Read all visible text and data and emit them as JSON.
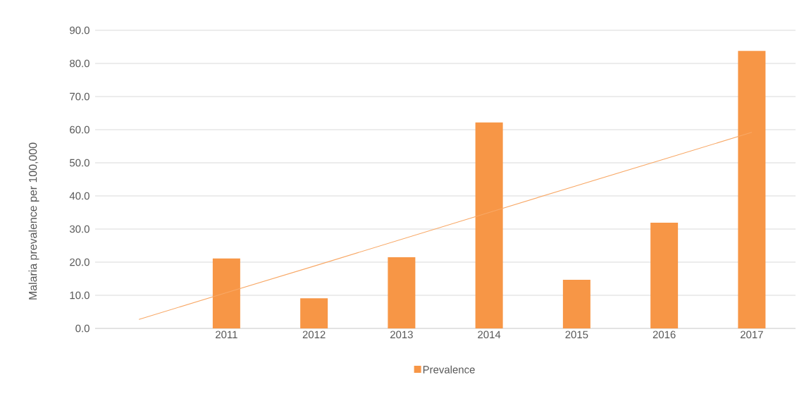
{
  "chart_data": {
    "type": "bar",
    "ylabel": "Malaria prevalence per 100,000",
    "categories": [
      null,
      "2011",
      "2012",
      "2013",
      "2014",
      "2015",
      "2016",
      "2017"
    ],
    "series": [
      {
        "name": "Prevalence",
        "color": "#f79646",
        "values": [
          null,
          21.1,
          9.1,
          21.5,
          62.2,
          14.7,
          31.9,
          83.8
        ]
      },
      {
        "type": "line",
        "color": "#f8a866",
        "values": [
          2.7,
          10.8,
          18.8,
          26.9,
          35.0,
          43.1,
          51.1,
          59.2
        ]
      }
    ],
    "ylim": [
      0,
      90
    ],
    "yticks": [
      {
        "value": 0,
        "label": "0.0"
      },
      {
        "value": 10,
        "label": "10.0"
      },
      {
        "value": 20,
        "label": "20.0"
      },
      {
        "value": 30,
        "label": "30.0"
      },
      {
        "value": 40,
        "label": "40.0"
      },
      {
        "value": 50,
        "label": "50.0"
      },
      {
        "value": 60,
        "label": "60.0"
      },
      {
        "value": 70,
        "label": "70.0"
      },
      {
        "value": 80,
        "label": "80.0"
      },
      {
        "value": 90,
        "label": "90.0"
      }
    ],
    "grid": "y",
    "legend": "bottom"
  }
}
